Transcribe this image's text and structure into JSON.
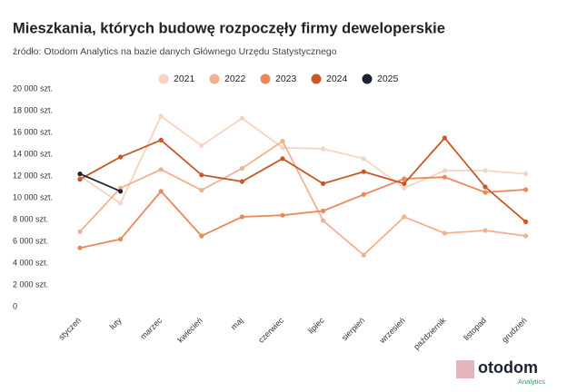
{
  "chart_data": {
    "type": "line",
    "title": "Mieszkania, których budowę rozpoczęły firmy deweloperskie",
    "subtitle": "źródło: Otodom Analytics na bazie danych Głównego Urzędu Statystycznego",
    "categories": [
      "styczeń",
      "luty",
      "marzec",
      "kwiecień",
      "maj",
      "czerwiec",
      "lipiec",
      "sierpień",
      "wrzesień",
      "październik",
      "listopad",
      "grudzień"
    ],
    "series": [
      {
        "name": "2021",
        "color": "#f8d3c0",
        "values": [
          12000,
          9500,
          17500,
          14800,
          17300,
          14600,
          14500,
          13600,
          10900,
          12500,
          12500,
          12200
        ]
      },
      {
        "name": "2022",
        "color": "#f3b091",
        "values": [
          6900,
          10900,
          12600,
          10700,
          12700,
          15200,
          7900,
          4750,
          8250,
          6750,
          7000,
          6500
        ]
      },
      {
        "name": "2023",
        "color": "#ea8857",
        "values": [
          5400,
          6200,
          10600,
          6500,
          8250,
          8400,
          8800,
          10300,
          11750,
          11900,
          10500,
          10750
        ]
      },
      {
        "name": "2024",
        "color": "#c75926",
        "values": [
          11700,
          13750,
          15300,
          12100,
          11500,
          13600,
          11300,
          12400,
          11300,
          15500,
          11000,
          7800
        ]
      },
      {
        "name": "2025",
        "color": "#1e2235",
        "values": [
          12200,
          10600,
          null,
          null,
          null,
          null,
          null,
          null,
          null,
          null,
          null,
          null
        ]
      }
    ],
    "ylim": [
      0,
      20000
    ],
    "yticks": [
      0,
      {
        "value": 2000,
        "label": "2 000 szt."
      },
      {
        "value": 4000,
        "label": "4 000 szt."
      },
      {
        "value": 6000,
        "label": "6 000 szt."
      },
      {
        "value": 8000,
        "label": "8 000 szt."
      },
      {
        "value": 10000,
        "label": "10 000 szt."
      },
      {
        "value": 12000,
        "label": "12 000 szt."
      },
      {
        "value": 14000,
        "label": "14 000 szt."
      },
      {
        "value": 16000,
        "label": "16 000 szt."
      },
      {
        "value": 18000,
        "label": "18 000 szt."
      },
      {
        "value": 20000,
        "label": "20 000 szt."
      }
    ],
    "grid": false,
    "legend": "top"
  },
  "logo": {
    "name": "otodom",
    "tagline": "Analytics"
  }
}
